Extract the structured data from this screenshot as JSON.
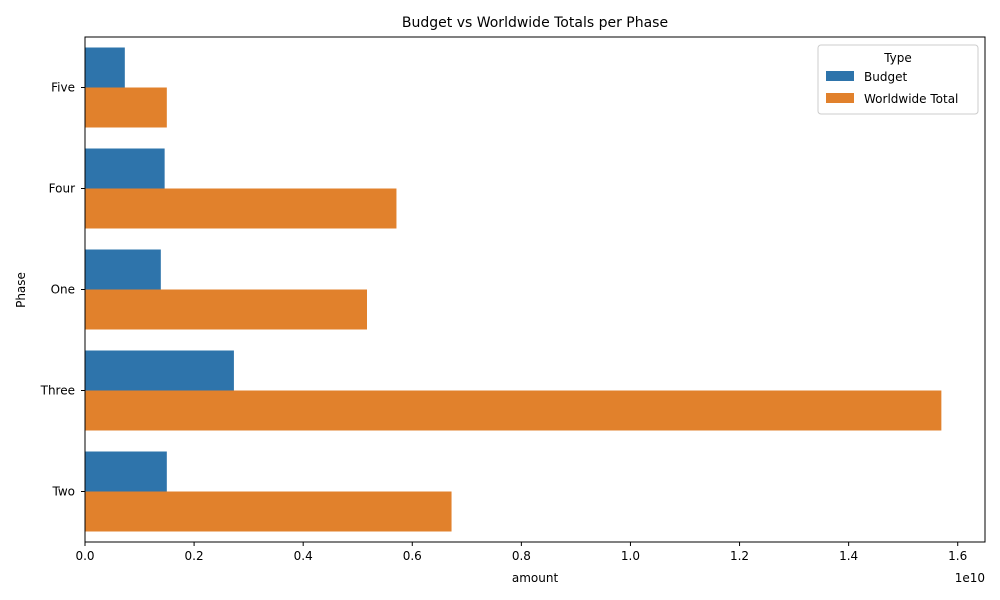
{
  "chart_data": {
    "type": "bar",
    "orientation": "horizontal",
    "title": "Budget vs Worldwide Totals per Phase",
    "xlabel": "amount",
    "ylabel": "Phase",
    "x_offset_text": "1e10",
    "categories": [
      "Five",
      "Four",
      "One",
      "Three",
      "Two"
    ],
    "series": [
      {
        "name": "Budget",
        "color": "#2e74ab",
        "values": [
          730000000,
          1460000000,
          1390000000,
          2730000000,
          1500000000
        ]
      },
      {
        "name": "Worldwide Total",
        "color": "#e1812c",
        "values": [
          1500000000,
          5710000000,
          5170000000,
          15700000000,
          6720000000
        ]
      }
    ],
    "xlim": [
      0,
      16500000000
    ],
    "xticks": [
      {
        "value": 0,
        "label": "0.0"
      },
      {
        "value": 2000000000,
        "label": "0.2"
      },
      {
        "value": 4000000000,
        "label": "0.4"
      },
      {
        "value": 6000000000,
        "label": "0.6"
      },
      {
        "value": 8000000000,
        "label": "0.8"
      },
      {
        "value": 10000000000,
        "label": "1.0"
      },
      {
        "value": 12000000000,
        "label": "1.2"
      },
      {
        "value": 14000000000,
        "label": "1.4"
      },
      {
        "value": 16000000000,
        "label": "1.6"
      }
    ],
    "legend": {
      "title": "Type",
      "position": "top-right"
    },
    "grid": false
  }
}
